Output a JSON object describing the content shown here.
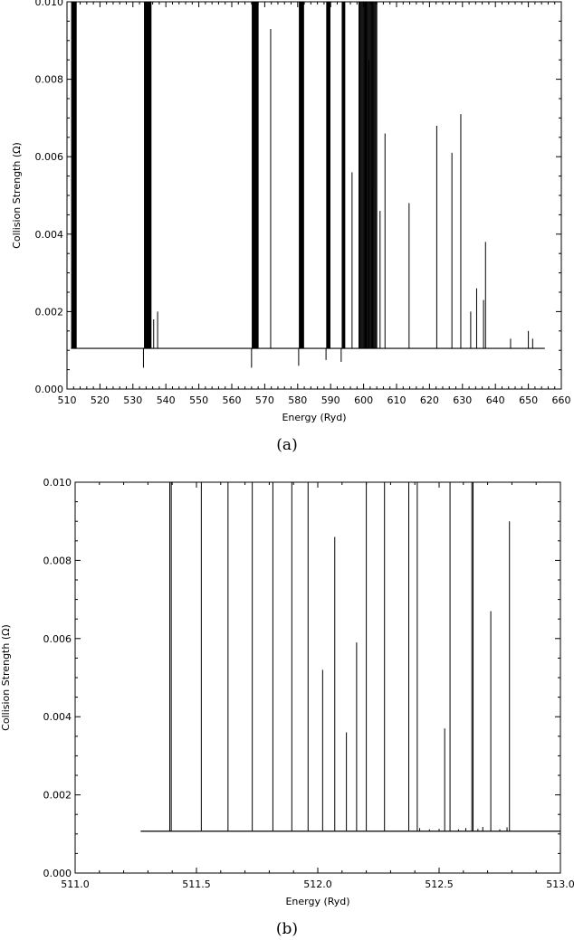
{
  "chart_data": [
    {
      "type": "line",
      "caption": "(a)",
      "xlabel": "Energy (Ryd)",
      "ylabel": "Collision Strength (Ω)",
      "xlim": [
        510,
        660
      ],
      "ylim": [
        0,
        0.01
      ],
      "xticks": [
        "510",
        "520",
        "530",
        "540",
        "550",
        "560",
        "570",
        "580",
        "590",
        "600",
        "610",
        "620",
        "630",
        "640",
        "650",
        "660"
      ],
      "yticks": [
        "0.000",
        "0.002",
        "0.004",
        "0.006",
        "0.008",
        "0.010"
      ],
      "baseline": 0.00105,
      "x_range": [
        511.2,
        655
      ],
      "spike_clusters": [
        {
          "x_start": 511.4,
          "x_end": 512.8,
          "peak": 0.01,
          "count": 14
        },
        {
          "x_start": 533.5,
          "x_end": 535.5,
          "peak": 0.01,
          "count": 12
        },
        {
          "x_start": 566.2,
          "x_end": 568.0,
          "peak": 0.01,
          "count": 12
        },
        {
          "x_start": 580.5,
          "x_end": 581.8,
          "peak": 0.01,
          "count": 10
        },
        {
          "x_start": 588.8,
          "x_end": 589.8,
          "peak": 0.01,
          "count": 8
        },
        {
          "x_start": 593.5,
          "x_end": 594.3,
          "peak": 0.01,
          "count": 6
        },
        {
          "x_start": 598.6,
          "x_end": 604.0,
          "peak": 0.01,
          "count": 22
        }
      ],
      "spikes": [
        {
          "x": 536.3,
          "y": 0.0018
        },
        {
          "x": 537.5,
          "y": 0.002
        },
        {
          "x": 571.8,
          "y": 0.0093
        },
        {
          "x": 596.5,
          "y": 0.0056
        },
        {
          "x": 601.5,
          "y": 0.0085
        },
        {
          "x": 602.8,
          "y": 0.0052
        },
        {
          "x": 605.0,
          "y": 0.0046
        },
        {
          "x": 606.5,
          "y": 0.0066
        },
        {
          "x": 613.8,
          "y": 0.0048
        },
        {
          "x": 622.2,
          "y": 0.0068
        },
        {
          "x": 626.8,
          "y": 0.0061
        },
        {
          "x": 629.5,
          "y": 0.0071
        },
        {
          "x": 632.5,
          "y": 0.002
        },
        {
          "x": 634.3,
          "y": 0.0026
        },
        {
          "x": 636.4,
          "y": 0.0023
        },
        {
          "x": 637.0,
          "y": 0.0038
        },
        {
          "x": 644.6,
          "y": 0.0013
        },
        {
          "x": 650.0,
          "y": 0.0015
        },
        {
          "x": 651.3,
          "y": 0.0013
        }
      ],
      "dips": [
        {
          "x": 533.2,
          "y": 0.00055
        },
        {
          "x": 566.0,
          "y": 0.00055
        },
        {
          "x": 580.3,
          "y": 0.0006
        },
        {
          "x": 588.6,
          "y": 0.00075
        },
        {
          "x": 593.2,
          "y": 0.0007
        }
      ]
    },
    {
      "type": "line",
      "caption": "(b)",
      "xlabel": "Energy (Ryd)",
      "ylabel": "Collision Strength (Ω)",
      "xlim": [
        511.0,
        513.0
      ],
      "ylim": [
        0,
        0.01
      ],
      "xticks": [
        "511.0",
        "511.5",
        "512.0",
        "512.5",
        "513.0"
      ],
      "yticks": [
        "0.000",
        "0.002",
        "0.004",
        "0.006",
        "0.008",
        "0.010"
      ],
      "baseline": 0.00107,
      "x_range": [
        511.27,
        513.0
      ],
      "spikes": [
        {
          "x": 511.39,
          "y": 0.01
        },
        {
          "x": 511.396,
          "y": 0.01
        },
        {
          "x": 511.52,
          "y": 0.01
        },
        {
          "x": 511.63,
          "y": 0.01
        },
        {
          "x": 511.73,
          "y": 0.01
        },
        {
          "x": 511.815,
          "y": 0.01
        },
        {
          "x": 511.893,
          "y": 0.01
        },
        {
          "x": 511.96,
          "y": 0.01
        },
        {
          "x": 512.02,
          "y": 0.0052
        },
        {
          "x": 512.07,
          "y": 0.0086
        },
        {
          "x": 512.118,
          "y": 0.0036
        },
        {
          "x": 512.16,
          "y": 0.0059
        },
        {
          "x": 512.2,
          "y": 0.01
        },
        {
          "x": 512.275,
          "y": 0.01
        },
        {
          "x": 512.375,
          "y": 0.01
        },
        {
          "x": 512.41,
          "y": 0.01
        },
        {
          "x": 512.523,
          "y": 0.0037
        },
        {
          "x": 512.545,
          "y": 0.01
        },
        {
          "x": 512.635,
          "y": 0.01
        },
        {
          "x": 512.64,
          "y": 0.01
        },
        {
          "x": 512.713,
          "y": 0.0067
        },
        {
          "x": 512.79,
          "y": 0.009
        }
      ],
      "small_spikes": [
        {
          "x": 512.42,
          "y": 0.00115
        },
        {
          "x": 512.46,
          "y": 0.00112
        },
        {
          "x": 512.5,
          "y": 0.00113
        },
        {
          "x": 512.58,
          "y": 0.00112
        },
        {
          "x": 512.61,
          "y": 0.00115
        },
        {
          "x": 512.66,
          "y": 0.00113
        },
        {
          "x": 512.68,
          "y": 0.00118
        },
        {
          "x": 512.75,
          "y": 0.00112
        },
        {
          "x": 512.78,
          "y": 0.00117
        }
      ]
    }
  ]
}
